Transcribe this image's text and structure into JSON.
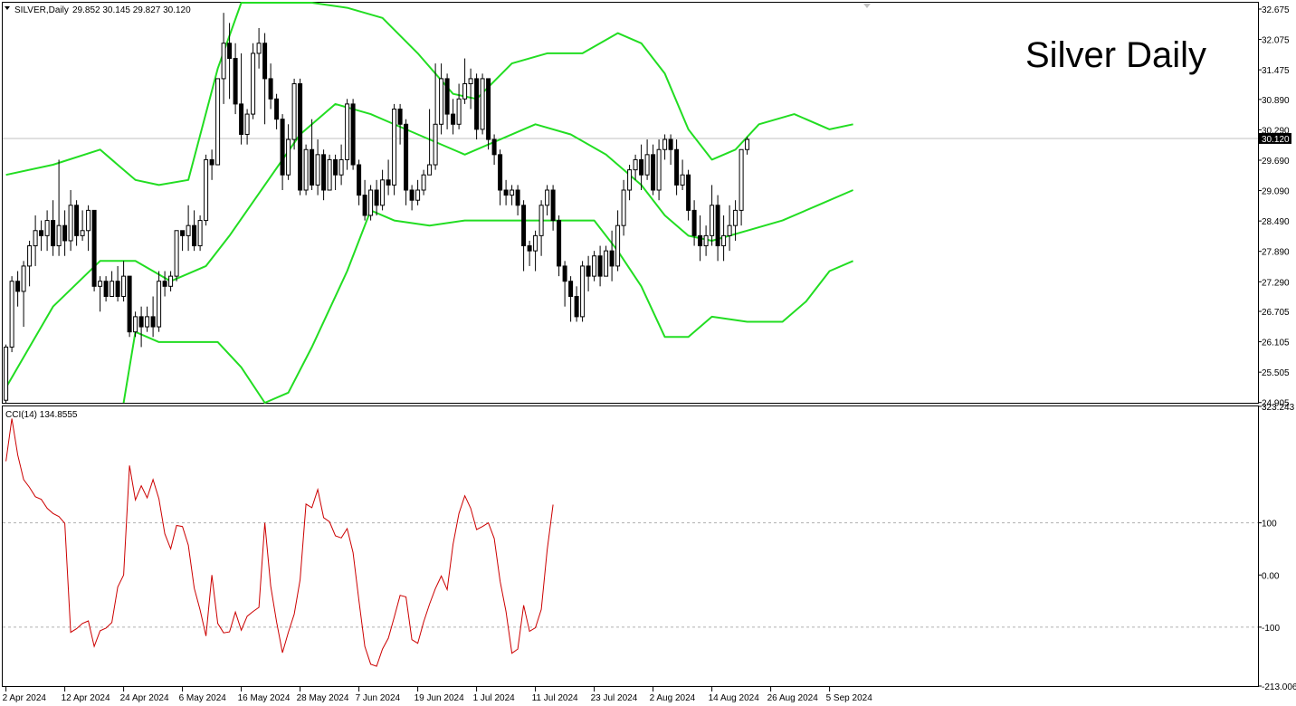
{
  "header": {
    "symbol": "SILVER,Daily",
    "ohlc": "29.852 30.145 29.827 30.120",
    "title": "Silver Daily",
    "indicator": "CCI(14) 134.8555",
    "current_price": "30.120"
  },
  "colors": {
    "bollinger": "#22dd22",
    "cci": "#cc0000",
    "bull_body": "#ffffff",
    "bear_body": "#000000",
    "grid_level": "#b0b0b0"
  },
  "chart_data": [
    {
      "type": "candlestick",
      "title": "Silver Daily",
      "ylim": [
        24.9,
        32.8
      ],
      "y_ticks": [
        "32.675",
        "32.075",
        "31.475",
        "30.890",
        "30.290",
        "29.690",
        "29.090",
        "28.490",
        "27.890",
        "27.290",
        "26.705",
        "26.105",
        "25.505",
        "24.905"
      ],
      "last_price": 30.12,
      "x_ticks": [
        {
          "label": "2 Apr 2024",
          "i": 0
        },
        {
          "label": "12 Apr 2024",
          "i": 10
        },
        {
          "label": "24 Apr 2024",
          "i": 20
        },
        {
          "label": "6 May 2024",
          "i": 30
        },
        {
          "label": "16 May 2024",
          "i": 40
        },
        {
          "label": "28 May 2024",
          "i": 50
        },
        {
          "label": "7 Jun 2024",
          "i": 60
        },
        {
          "label": "19 Jun 2024",
          "i": 70
        },
        {
          "label": "1 Jul 2024",
          "i": 80
        },
        {
          "label": "11 Jul 2024",
          "i": 90
        },
        {
          "label": "23 Jul 2024",
          "i": 100
        },
        {
          "label": "2 Aug 2024",
          "i": 110
        },
        {
          "label": "14 Aug 2024",
          "i": 120
        },
        {
          "label": "26 Aug 2024",
          "i": 130
        },
        {
          "label": "5 Sep 2024",
          "i": 140
        }
      ],
      "candles": [
        [
          24.95,
          26.0,
          24.9,
          26.05
        ],
        [
          26.0,
          27.3,
          25.9,
          27.4
        ],
        [
          27.3,
          27.1,
          26.8,
          27.5
        ],
        [
          27.1,
          27.6,
          26.4,
          27.7
        ],
        [
          27.6,
          28.0,
          27.2,
          28.1
        ],
        [
          28.0,
          28.3,
          27.6,
          28.6
        ],
        [
          28.3,
          28.2,
          27.9,
          28.5
        ],
        [
          28.2,
          28.5,
          27.9,
          28.7
        ],
        [
          28.5,
          28.0,
          27.8,
          28.9
        ],
        [
          28.0,
          28.4,
          27.8,
          29.7
        ],
        [
          28.4,
          28.1,
          27.8,
          28.7
        ],
        [
          28.1,
          28.8,
          27.9,
          29.1
        ],
        [
          28.8,
          28.2,
          28.0,
          28.9
        ],
        [
          28.2,
          28.3,
          28.1,
          28.7
        ],
        [
          28.3,
          28.7,
          27.9,
          28.8
        ],
        [
          28.7,
          27.2,
          27.1,
          28.7
        ],
        [
          27.2,
          27.3,
          26.7,
          27.4
        ],
        [
          27.3,
          27.0,
          26.9,
          27.4
        ],
        [
          27.0,
          27.3,
          27.0,
          27.5
        ],
        [
          27.3,
          27.0,
          26.9,
          27.6
        ],
        [
          27.0,
          27.4,
          26.9,
          27.7
        ],
        [
          27.4,
          26.3,
          26.2,
          27.4
        ],
        [
          26.3,
          26.6,
          26.2,
          26.7
        ],
        [
          26.6,
          26.4,
          26.0,
          26.8
        ],
        [
          26.4,
          26.6,
          26.3,
          26.8
        ],
        [
          26.6,
          26.4,
          26.2,
          27.0
        ],
        [
          26.4,
          27.3,
          26.3,
          27.5
        ],
        [
          27.3,
          27.2,
          27.0,
          27.5
        ],
        [
          27.2,
          27.4,
          27.1,
          27.5
        ],
        [
          27.4,
          28.3,
          27.3,
          28.3
        ],
        [
          28.3,
          28.2,
          27.9,
          28.3
        ],
        [
          28.2,
          28.4,
          27.9,
          28.8
        ],
        [
          28.4,
          28.0,
          27.9,
          28.7
        ],
        [
          28.0,
          28.5,
          27.9,
          28.6
        ],
        [
          28.5,
          29.7,
          28.4,
          29.8
        ],
        [
          29.7,
          29.6,
          29.3,
          29.9
        ],
        [
          29.6,
          31.3,
          29.6,
          31.3
        ],
        [
          31.3,
          32.0,
          30.8,
          32.6
        ],
        [
          32.0,
          31.7,
          30.9,
          32.4
        ],
        [
          31.7,
          30.8,
          30.6,
          32.0
        ],
        [
          30.8,
          30.2,
          30.0,
          31.8
        ],
        [
          30.2,
          30.6,
          30.0,
          30.7
        ],
        [
          30.6,
          31.8,
          30.5,
          32.0
        ],
        [
          31.8,
          32.0,
          31.5,
          32.3
        ],
        [
          32.0,
          31.3,
          30.4,
          32.2
        ],
        [
          31.3,
          30.9,
          30.7,
          31.6
        ],
        [
          30.9,
          30.5,
          30.3,
          31.0
        ],
        [
          30.5,
          29.4,
          29.1,
          30.6
        ],
        [
          29.4,
          30.1,
          29.3,
          30.4
        ],
        [
          30.1,
          31.2,
          29.9,
          31.3
        ],
        [
          31.2,
          29.1,
          29.0,
          31.3
        ],
        [
          29.1,
          29.9,
          29.0,
          30.0
        ],
        [
          29.9,
          29.2,
          29.1,
          30.5
        ],
        [
          29.2,
          29.8,
          29.0,
          30.1
        ],
        [
          29.8,
          29.1,
          28.9,
          29.9
        ],
        [
          29.1,
          29.7,
          29.1,
          29.8
        ],
        [
          29.7,
          29.4,
          29.1,
          29.8
        ],
        [
          29.4,
          29.7,
          29.2,
          30.0
        ],
        [
          29.7,
          30.8,
          29.5,
          30.9
        ],
        [
          30.8,
          29.6,
          29.5,
          30.9
        ],
        [
          29.6,
          29.0,
          28.8,
          29.7
        ],
        [
          29.0,
          28.6,
          28.5,
          29.3
        ],
        [
          28.6,
          29.1,
          28.5,
          29.2
        ],
        [
          29.1,
          28.8,
          28.6,
          29.3
        ],
        [
          28.8,
          29.3,
          28.7,
          29.5
        ],
        [
          29.3,
          29.2,
          29.0,
          29.7
        ],
        [
          29.2,
          30.7,
          29.0,
          30.8
        ],
        [
          30.7,
          30.4,
          30.0,
          30.8
        ],
        [
          30.4,
          29.1,
          28.8,
          30.5
        ],
        [
          29.1,
          28.9,
          28.7,
          29.2
        ],
        [
          28.9,
          29.1,
          28.8,
          29.3
        ],
        [
          29.1,
          29.4,
          29.0,
          29.5
        ],
        [
          29.4,
          29.6,
          29.4,
          30.7
        ],
        [
          29.6,
          30.4,
          29.5,
          31.6
        ],
        [
          30.4,
          31.3,
          30.2,
          31.6
        ],
        [
          31.3,
          30.6,
          30.3,
          31.4
        ],
        [
          30.6,
          30.4,
          30.2,
          30.9
        ],
        [
          30.4,
          30.9,
          30.3,
          31.2
        ],
        [
          30.9,
          31.2,
          30.8,
          31.7
        ],
        [
          31.2,
          31.3,
          30.7,
          31.5
        ],
        [
          31.3,
          30.3,
          30.1,
          31.4
        ],
        [
          30.3,
          31.3,
          30.2,
          31.4
        ],
        [
          31.3,
          30.1,
          29.9,
          31.3
        ],
        [
          30.1,
          29.8,
          29.6,
          30.2
        ],
        [
          29.8,
          29.1,
          28.8,
          29.9
        ],
        [
          29.1,
          29.0,
          28.8,
          29.3
        ],
        [
          29.0,
          29.1,
          28.8,
          29.2
        ],
        [
          29.1,
          28.8,
          28.6,
          29.2
        ],
        [
          28.8,
          28.0,
          27.5,
          28.9
        ],
        [
          28.0,
          27.9,
          27.6,
          28.1
        ],
        [
          27.9,
          28.2,
          27.5,
          28.3
        ],
        [
          28.2,
          28.8,
          27.8,
          28.9
        ],
        [
          28.8,
          29.1,
          28.6,
          29.2
        ],
        [
          29.1,
          28.5,
          28.3,
          29.2
        ],
        [
          28.5,
          27.6,
          27.4,
          28.6
        ],
        [
          27.6,
          27.3,
          26.8,
          27.7
        ],
        [
          27.3,
          27.0,
          26.5,
          27.4
        ],
        [
          27.0,
          26.6,
          26.5,
          27.2
        ],
        [
          26.6,
          27.6,
          26.5,
          27.7
        ],
        [
          27.6,
          27.4,
          27.1,
          27.8
        ],
        [
          27.4,
          27.8,
          27.3,
          27.9
        ],
        [
          27.8,
          27.4,
          27.2,
          28.0
        ],
        [
          27.4,
          27.9,
          27.4,
          28.0
        ],
        [
          27.9,
          27.6,
          27.3,
          28.3
        ],
        [
          27.6,
          28.4,
          27.5,
          28.7
        ],
        [
          28.4,
          29.1,
          28.2,
          29.3
        ],
        [
          29.1,
          29.5,
          28.9,
          29.6
        ],
        [
          29.5,
          29.7,
          29.3,
          29.8
        ],
        [
          29.7,
          29.4,
          29.1,
          30.0
        ],
        [
          29.4,
          29.8,
          29.3,
          30.1
        ],
        [
          29.8,
          29.1,
          29.0,
          30.0
        ],
        [
          29.1,
          29.9,
          28.9,
          30.1
        ],
        [
          29.9,
          30.1,
          29.7,
          30.2
        ],
        [
          30.1,
          29.9,
          29.6,
          30.2
        ],
        [
          29.9,
          29.2,
          29.0,
          30.1
        ],
        [
          29.2,
          29.4,
          29.1,
          29.7
        ],
        [
          29.4,
          28.7,
          28.5,
          29.5
        ],
        [
          28.7,
          28.2,
          28.0,
          28.9
        ],
        [
          28.2,
          28.0,
          27.7,
          28.6
        ],
        [
          28.0,
          28.2,
          27.8,
          28.4
        ],
        [
          28.2,
          28.8,
          28.0,
          29.2
        ],
        [
          28.8,
          28.0,
          27.7,
          29.0
        ],
        [
          28.0,
          28.2,
          27.7,
          28.6
        ],
        [
          28.2,
          28.4,
          27.9,
          28.8
        ],
        [
          28.4,
          28.7,
          28.1,
          28.9
        ],
        [
          28.7,
          29.9,
          28.4,
          29.9
        ],
        [
          29.9,
          30.1,
          29.8,
          30.15
        ]
      ],
      "bollinger": {
        "upper": [
          [
            0,
            29.4
          ],
          [
            8,
            29.6
          ],
          [
            16,
            29.9
          ],
          [
            22,
            29.3
          ],
          [
            26,
            29.2
          ],
          [
            31,
            29.3
          ],
          [
            36,
            31.5
          ],
          [
            40,
            33.2
          ],
          [
            46,
            33.4
          ],
          [
            52,
            33.0
          ],
          [
            58,
            32.7
          ],
          [
            64,
            32.5
          ],
          [
            70,
            31.8
          ],
          [
            76,
            31.0
          ],
          [
            80,
            30.9
          ],
          [
            86,
            31.6
          ],
          [
            92,
            31.8
          ],
          [
            98,
            31.8
          ],
          [
            104,
            32.2
          ],
          [
            108,
            32.0
          ],
          [
            112,
            31.4
          ],
          [
            116,
            30.3
          ],
          [
            120,
            29.7
          ],
          [
            124,
            29.9
          ],
          [
            128,
            30.4
          ],
          [
            134,
            30.6
          ],
          [
            140,
            30.3
          ],
          [
            144,
            30.4
          ]
        ],
        "middle": [
          [
            0,
            25.2
          ],
          [
            8,
            26.8
          ],
          [
            16,
            27.7
          ],
          [
            22,
            27.7
          ],
          [
            28,
            27.3
          ],
          [
            34,
            27.6
          ],
          [
            38,
            28.2
          ],
          [
            44,
            29.2
          ],
          [
            50,
            30.2
          ],
          [
            56,
            30.8
          ],
          [
            62,
            30.6
          ],
          [
            70,
            30.2
          ],
          [
            78,
            29.8
          ],
          [
            84,
            30.1
          ],
          [
            90,
            30.4
          ],
          [
            96,
            30.2
          ],
          [
            102,
            29.8
          ],
          [
            108,
            29.2
          ],
          [
            112,
            28.6
          ],
          [
            116,
            28.2
          ],
          [
            120,
            28.1
          ],
          [
            126,
            28.3
          ],
          [
            132,
            28.5
          ],
          [
            138,
            28.8
          ],
          [
            144,
            29.1
          ]
        ],
        "lower": [
          [
            20,
            24.9
          ],
          [
            22,
            26.3
          ],
          [
            26,
            26.1
          ],
          [
            30,
            26.1
          ],
          [
            36,
            26.1
          ],
          [
            40,
            25.6
          ],
          [
            44,
            24.9
          ],
          [
            48,
            25.1
          ],
          [
            52,
            26.0
          ],
          [
            58,
            27.5
          ],
          [
            62,
            28.7
          ],
          [
            66,
            28.5
          ],
          [
            72,
            28.4
          ],
          [
            78,
            28.5
          ],
          [
            86,
            28.5
          ],
          [
            94,
            28.5
          ],
          [
            100,
            28.5
          ],
          [
            104,
            27.9
          ],
          [
            108,
            27.2
          ],
          [
            112,
            26.2
          ],
          [
            116,
            26.2
          ],
          [
            120,
            26.6
          ],
          [
            126,
            26.5
          ],
          [
            132,
            26.5
          ],
          [
            136,
            26.9
          ],
          [
            140,
            27.5
          ],
          [
            144,
            27.7
          ]
        ]
      }
    },
    {
      "type": "line",
      "title": "CCI(14) 134.8555",
      "ylim": [
        -213.006,
        323.243
      ],
      "y_ticks": [
        "323.243",
        "100",
        "0.00",
        "-100",
        "-213.006"
      ],
      "levels": [
        100,
        -100
      ],
      "last_value": 134.8555,
      "series": [
        {
          "values": [
            218,
            300,
            230,
            183,
            168,
            150,
            145,
            128,
            118,
            112,
            99,
            -110,
            -103,
            -93,
            -88,
            -137,
            -107,
            -102,
            -91,
            -23,
            0,
            210,
            144,
            171,
            148,
            183,
            146,
            79,
            50,
            95,
            93,
            57,
            -25,
            -67,
            -117,
            0,
            -93,
            -111,
            -109,
            -71,
            -106,
            -79,
            -70,
            -62,
            100,
            -21,
            -90,
            -149,
            -110,
            -75,
            -9,
            136,
            129,
            164,
            110,
            102,
            75,
            71,
            89,
            43,
            -49,
            -137,
            -171,
            -175,
            -142,
            -121,
            -81,
            -39,
            -42,
            -124,
            -131,
            -90,
            -56,
            -26,
            -2,
            -28,
            59,
            118,
            152,
            128,
            87,
            93,
            100,
            70,
            -12,
            -70,
            -150,
            -142,
            -58,
            -108,
            -101,
            -66,
            48,
            135
          ]
        }
      ]
    }
  ]
}
